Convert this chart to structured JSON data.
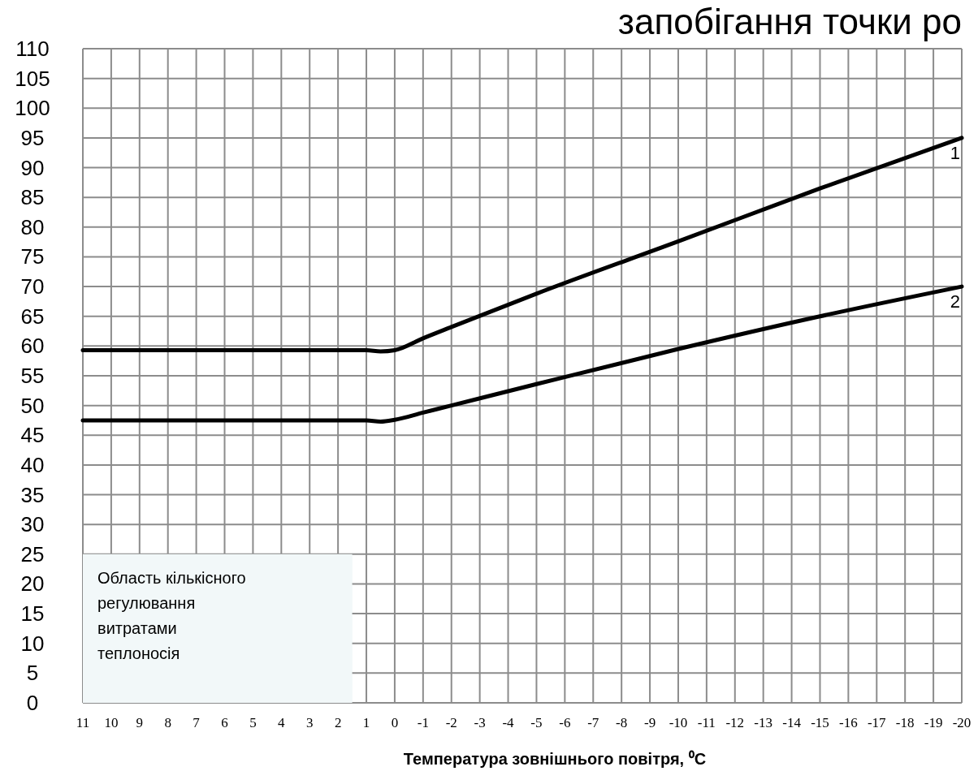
{
  "chart_data": {
    "type": "line",
    "title": "запобігання точки ро",
    "xlabel": "Температура зовнішнього повітря, ⁰C",
    "x": [
      11,
      1,
      0.5,
      0,
      -1,
      -2,
      -5,
      -10,
      -15,
      -20
    ],
    "series": [
      {
        "name": "1",
        "color": "#000000",
        "values": [
          59.3,
          59.3,
          59.1,
          59.3,
          61.3,
          63.2,
          68.8,
          77.6,
          86.5,
          95
        ]
      },
      {
        "name": "2",
        "color": "#000000",
        "values": [
          47.5,
          47.5,
          47.3,
          47.6,
          48.8,
          50,
          53.6,
          59.5,
          65,
          70
        ]
      }
    ],
    "xlim": [
      11,
      -20
    ],
    "xticks": [
      11,
      10,
      9,
      8,
      7,
      6,
      5,
      4,
      3,
      2,
      1,
      0,
      -1,
      -2,
      -3,
      -4,
      -5,
      -6,
      -7,
      -8,
      -9,
      -10,
      -11,
      -12,
      -13,
      -14,
      -15,
      -16,
      -17,
      -18,
      -19,
      -20
    ],
    "ylim": [
      0,
      110
    ],
    "yticks": [
      0,
      5,
      10,
      15,
      20,
      25,
      30,
      35,
      40,
      45,
      50,
      55,
      60,
      65,
      70,
      75,
      80,
      85,
      90,
      95,
      100,
      105,
      110
    ],
    "bands": [
      {
        "axis": "x",
        "from": 11,
        "to": 1.5,
        "label": "Область кількісного регулювання витратами теплоносія",
        "color": "#f2f8f9"
      }
    ],
    "grid": true,
    "marker": "none",
    "line_style": "solid"
  }
}
